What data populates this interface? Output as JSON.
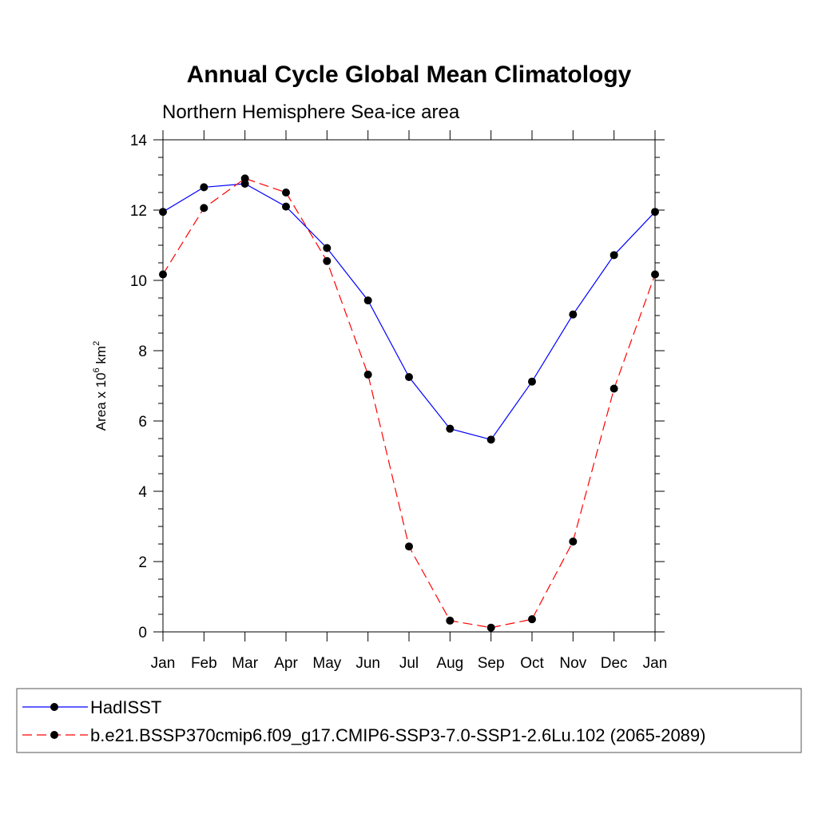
{
  "chart_data": {
    "type": "line",
    "title": "Annual Cycle Global Mean Climatology",
    "subtitle": "Northern Hemisphere Sea-ice area",
    "ylabel_main": "Area x 10",
    "ylabel_sup1": "6",
    "ylabel_unit": " km",
    "ylabel_sup2": "2",
    "xlabel": "",
    "categories": [
      "Jan",
      "Feb",
      "Mar",
      "Apr",
      "May",
      "Jun",
      "Jul",
      "Aug",
      "Sep",
      "Oct",
      "Nov",
      "Dec",
      "Jan"
    ],
    "ylim": [
      0,
      14
    ],
    "yticks": [
      0,
      2,
      4,
      6,
      8,
      10,
      12,
      14
    ],
    "grid": false,
    "legend_position": "bottom",
    "series": [
      {
        "name": "HadISST",
        "color": "#0000ff",
        "dash": "solid",
        "values": [
          11.95,
          12.65,
          12.75,
          12.1,
          10.92,
          9.43,
          7.25,
          5.78,
          5.47,
          7.12,
          9.03,
          10.72,
          11.95
        ]
      },
      {
        "name": "b.e21.BSSP370cmip6.f09_g17.CMIP6-SSP3-7.0-SSP1-2.6Lu.102 (2065-2089)",
        "color": "#ff0000",
        "dash": "dashed",
        "values": [
          10.17,
          12.06,
          12.9,
          12.5,
          10.55,
          7.32,
          2.43,
          0.32,
          0.12,
          0.36,
          2.57,
          6.92,
          10.17
        ]
      }
    ]
  }
}
